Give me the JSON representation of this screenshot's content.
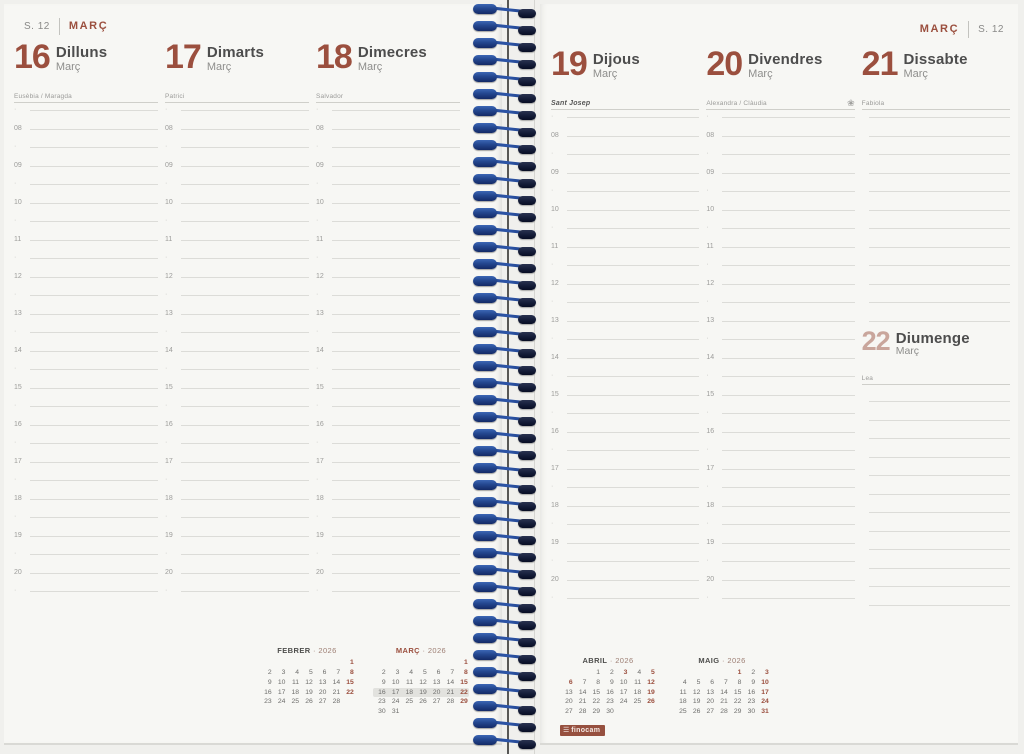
{
  "pages": {
    "left": {
      "week_label": "S. 12",
      "month_label": "MARÇ"
    },
    "right": {
      "month_label": "MARÇ",
      "week_label": "S. 12"
    }
  },
  "days": [
    {
      "num": "16",
      "name": "Dilluns",
      "month": "Març",
      "saint": "Eusèbia / Maragda"
    },
    {
      "num": "17",
      "name": "Dimarts",
      "month": "Març",
      "saint": "Patrici"
    },
    {
      "num": "18",
      "name": "Dimecres",
      "month": "Març",
      "saint": "Salvador"
    },
    {
      "num": "19",
      "name": "Dijous",
      "month": "Març",
      "saint": "Sant Josep",
      "holiday": true
    },
    {
      "num": "20",
      "name": "Divendres",
      "month": "Març",
      "saint": "Alexandra / Clàudia",
      "has_flower": true
    },
    {
      "num": "21",
      "name": "Dissabte",
      "month": "Març",
      "saint": "Fabiola",
      "no_hour_labels": true,
      "has_sunday_insert": true
    }
  ],
  "sunday": {
    "num": "22",
    "name": "Diumenge",
    "month": "Març",
    "saint": "Lea"
  },
  "schedule": {
    "hours": [
      "08",
      "09",
      "10",
      "11",
      "12",
      "13",
      "14",
      "15",
      "16",
      "17",
      "18",
      "19",
      "20"
    ],
    "half_hour_marker": "·"
  },
  "mini_calendars": [
    {
      "month": "FEBRER",
      "year": "2026",
      "separator": "·",
      "current": false,
      "page": "left",
      "weeks": [
        [
          "",
          "",
          "",
          "",
          "",
          "",
          "1"
        ],
        [
          "2",
          "3",
          "4",
          "5",
          "6",
          "7",
          "8"
        ],
        [
          "9",
          "10",
          "11",
          "12",
          "13",
          "14",
          "15"
        ],
        [
          "16",
          "17",
          "18",
          "19",
          "20",
          "21",
          "22"
        ],
        [
          "23",
          "24",
          "25",
          "26",
          "27",
          "28",
          ""
        ]
      ],
      "accent_days": [
        "1",
        "8",
        "15",
        "22"
      ],
      "highlight_week": null
    },
    {
      "month": "MARÇ",
      "year": "2026",
      "separator": "·",
      "current": true,
      "page": "left",
      "weeks": [
        [
          "",
          "",
          "",
          "",
          "",
          "",
          "1"
        ],
        [
          "2",
          "3",
          "4",
          "5",
          "6",
          "7",
          "8"
        ],
        [
          "9",
          "10",
          "11",
          "12",
          "13",
          "14",
          "15"
        ],
        [
          "16",
          "17",
          "18",
          "19",
          "20",
          "21",
          "22"
        ],
        [
          "23",
          "24",
          "25",
          "26",
          "27",
          "28",
          "29"
        ],
        [
          "30",
          "31",
          "",
          "",
          "",
          "",
          ""
        ]
      ],
      "accent_days": [
        "1",
        "8",
        "15",
        "22",
        "29"
      ],
      "highlight_week": 3
    },
    {
      "month": "ABRIL",
      "year": "2026",
      "separator": "·",
      "current": false,
      "page": "right",
      "weeks": [
        [
          "",
          "",
          "1",
          "2",
          "3",
          "4",
          "5"
        ],
        [
          "6",
          "7",
          "8",
          "9",
          "10",
          "11",
          "12"
        ],
        [
          "13",
          "14",
          "15",
          "16",
          "17",
          "18",
          "19"
        ],
        [
          "20",
          "21",
          "22",
          "23",
          "24",
          "25",
          "26"
        ],
        [
          "27",
          "28",
          "29",
          "30",
          "",
          "",
          ""
        ]
      ],
      "accent_days": [
        "3",
        "5",
        "6",
        "12",
        "19",
        "26"
      ],
      "highlight_week": null
    },
    {
      "month": "MAIG",
      "year": "2026",
      "separator": "·",
      "current": false,
      "page": "right",
      "weeks": [
        [
          "",
          "",
          "",
          "",
          "1",
          "2",
          "3"
        ],
        [
          "4",
          "5",
          "6",
          "7",
          "8",
          "9",
          "10"
        ],
        [
          "11",
          "12",
          "13",
          "14",
          "15",
          "16",
          "17"
        ],
        [
          "18",
          "19",
          "20",
          "21",
          "22",
          "23",
          "24"
        ],
        [
          "25",
          "26",
          "27",
          "28",
          "29",
          "30",
          "31"
        ]
      ],
      "accent_days": [
        "1",
        "3",
        "10",
        "17",
        "24",
        "31"
      ],
      "highlight_week": null
    }
  ],
  "branding": {
    "logo_text": "finocam"
  },
  "icons": {
    "spring_flower": "❀",
    "logo_menu": "☰"
  },
  "colors": {
    "accent_brown": "#9b4f3e",
    "sunday_rose": "#c9a69c",
    "spiral_blue": "#2d55a8",
    "week_highlight": "#e2e2de",
    "page_bg": "#f7f7f4"
  }
}
